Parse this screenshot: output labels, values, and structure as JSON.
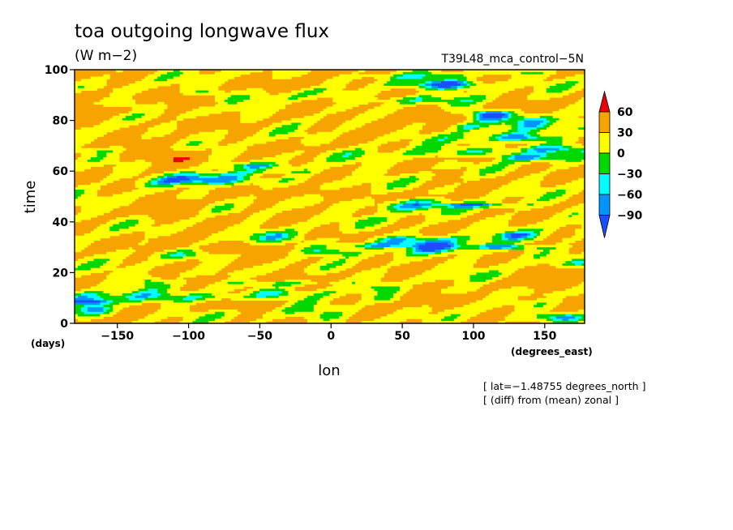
{
  "chart_data": {
    "type": "heatmap",
    "title": "toa outgoing longwave flux",
    "units": "(W m−2)",
    "dataset": "T39L48_mca_control−5N",
    "xlabel": "lon",
    "xunits": "(degrees_east)",
    "ylabel": "time",
    "yunits": "(days)",
    "xlim": [
      -180,
      178
    ],
    "ylim": [
      0,
      100
    ],
    "xticks": [
      -150,
      -100,
      -50,
      0,
      50,
      100,
      150
    ],
    "xtick_labels": [
      "−150",
      "−100",
      "−50",
      "0",
      "50",
      "100",
      "150"
    ],
    "yticks": [
      0,
      20,
      40,
      60,
      80,
      100
    ],
    "ytick_labels": [
      "0",
      "20",
      "40",
      "60",
      "80",
      "100"
    ],
    "colorbar": {
      "levels": [
        60,
        30,
        0,
        -30,
        -60,
        -90
      ],
      "level_labels": [
        "60",
        "30",
        "0",
        "−30",
        "−60",
        "−90"
      ],
      "colors": [
        "#e8000b",
        "#f7a400",
        "#ffff00",
        "#00d800",
        "#00ffff",
        "#0095ff",
        "#1a4fff"
      ]
    },
    "annotations": [
      "[ lat=−1.48755 degrees_north ]",
      "[ (diff) from (mean) zonal ]"
    ]
  }
}
